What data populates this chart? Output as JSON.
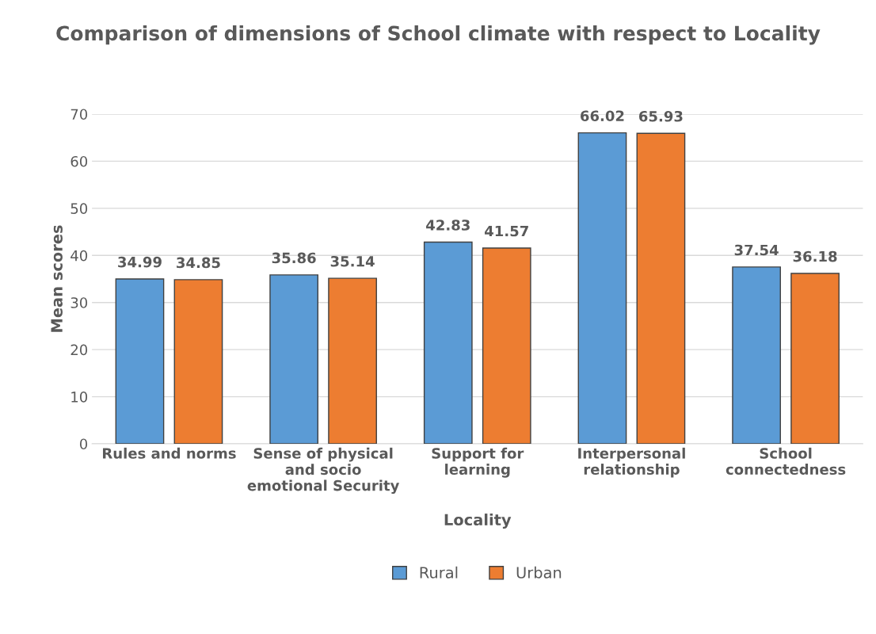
{
  "chart_data": {
    "type": "bar",
    "title": "Comparison of dimensions of School climate with respect to Locality",
    "xlabel": "Locality",
    "ylabel": "Mean scores",
    "categories": [
      "Rules and norms",
      "Sense of physical\nand socio\nemotional Security",
      "Support for\nlearning",
      "Interpersonal\nrelationship",
      "School\nconnectedness"
    ],
    "series": [
      {
        "name": "Rural",
        "color": "#5b9bd5",
        "values": [
          34.99,
          35.86,
          42.83,
          66.02,
          37.54
        ]
      },
      {
        "name": "Urban",
        "color": "#ed7d31",
        "values": [
          34.85,
          35.14,
          41.57,
          65.93,
          36.18
        ]
      }
    ],
    "ylim": [
      0,
      70
    ],
    "yticks": [
      0,
      10,
      20,
      30,
      40,
      50,
      60,
      70
    ],
    "grid": "y",
    "legend": "bottom",
    "data_labels": true
  }
}
